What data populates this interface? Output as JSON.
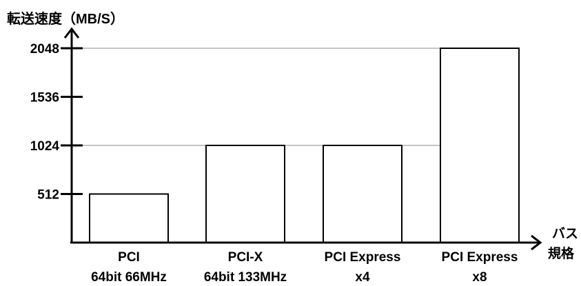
{
  "chart_data": {
    "type": "bar",
    "title": "",
    "ylabel": "転送速度（MB/S）",
    "xlabel": [
      "バス",
      "規格"
    ],
    "categories": [
      [
        "PCI",
        "64bit 66MHz"
      ],
      [
        "PCI-X",
        "64bit 133MHz"
      ],
      [
        "PCI Express",
        "x4"
      ],
      [
        "PCI Express",
        "x8"
      ]
    ],
    "values": [
      512,
      1024,
      1024,
      2048
    ],
    "yticks": [
      512,
      1024,
      1536,
      2048
    ],
    "ylim": [
      0,
      2048
    ],
    "gridlines_at": [
      1024,
      2048
    ],
    "colors": {
      "bar_fill": "#ffffff",
      "bar_stroke": "#000000",
      "axis": "#000000",
      "grid": "#888888"
    }
  }
}
